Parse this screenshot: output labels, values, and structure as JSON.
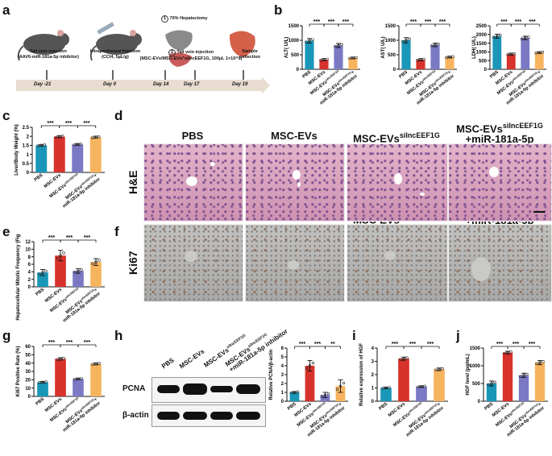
{
  "panel_labels": {
    "a": "a",
    "b": "b",
    "c": "c",
    "d": "d",
    "e": "e",
    "f": "f",
    "g": "g",
    "h": "h",
    "i": "i",
    "j": "j"
  },
  "colors": {
    "PBS": "#1a97b8",
    "MSC-EVs": "#d7322b",
    "MSC-EVs-silnc": "#7b79c4",
    "MSC-EVs-silnc+inh": "#f7b45f"
  },
  "group_labels": [
    "PBS",
    "MSC-EVs",
    "MSC-EVs^silncEEF1G",
    "MSC-EVs^silncEEF1G+miR-181a-5p inhibitor"
  ],
  "group_display": {
    "pbs": "PBS",
    "msc": "MSC-EVs",
    "silnc_base": "MSC-EVs",
    "silnc_sup": "silncEEF1G",
    "inh_base": "MSC-EVs",
    "inh_sup": "silncEEF1G",
    "inh_tail": "+",
    "inh_line2": "miR-181a-5p inhibitor",
    "inh_line2_full": "+miR-181a-5p inhibitor"
  },
  "timeline": {
    "steps": [
      {
        "label": "Tail vein injection",
        "sub": "(AAV6-miR-181a-5p inhibitor)",
        "day": "Day -21"
      },
      {
        "label": "Intraperitoneal Injection",
        "sub": "(CCl4, 5µL/g)",
        "day": "Day 0"
      },
      {
        "label": "",
        "sub": "",
        "day": "Day 14"
      },
      {
        "label": "Tail vein injection",
        "sub": "(MSC-EVs/MSC-EVs^silncEEF1G, 100µL 1×10^9)",
        "day": "Day 17"
      },
      {
        "label": "Sample",
        "sub": "collection",
        "day": "Day 19"
      }
    ],
    "hepatectomy_num": "1",
    "hepatectomy": "70% Hepatectomy",
    "tail_num": "2"
  },
  "sig": {
    "three": "***",
    "two": "**"
  },
  "image_rows": {
    "he": "H&E",
    "ki67": "Ki67"
  },
  "wb": {
    "pcna": "PCNA",
    "actin": "β-actin"
  },
  "chart_data": [
    {
      "id": "b1",
      "type": "bar",
      "ylabel": "ALT( U/L)",
      "yticks": [
        0,
        500,
        1000,
        1500
      ],
      "ylim": [
        0,
        1500
      ],
      "values": [
        980,
        330,
        820,
        390
      ],
      "errors": [
        80,
        40,
        70,
        30
      ],
      "sig": [
        "***",
        "***",
        "***"
      ]
    },
    {
      "id": "b2",
      "type": "bar",
      "ylabel": "AST( U/L)",
      "yticks": [
        0,
        500,
        1000,
        1500
      ],
      "ylim": [
        0,
        1500
      ],
      "values": [
        1000,
        330,
        840,
        420
      ],
      "errors": [
        90,
        40,
        60,
        30
      ],
      "sig": [
        "***",
        "***",
        "***"
      ]
    },
    {
      "id": "b3",
      "type": "bar",
      "ylabel": "LDH( U/L)",
      "yticks": [
        0,
        500,
        1000,
        1500,
        2000,
        2500
      ],
      "ylim": [
        0,
        2500
      ],
      "values": [
        1900,
        870,
        1800,
        960
      ],
      "errors": [
        120,
        60,
        100,
        50
      ],
      "sig": [
        "***",
        "***",
        "***"
      ]
    },
    {
      "id": "c",
      "type": "bar",
      "ylabel": "Liver/Body Weight (%)",
      "yticks": [
        0.0,
        0.5,
        1.0,
        1.5,
        2.0,
        2.5
      ],
      "ylim": [
        0,
        2.5
      ],
      "values": [
        1.5,
        1.98,
        1.55,
        1.95
      ],
      "errors": [
        0.05,
        0.06,
        0.05,
        0.06
      ],
      "sig": [
        "***",
        "***",
        "***"
      ]
    },
    {
      "id": "e",
      "type": "bar",
      "ylabel": "Hepatocellular Mitotic Frequency (Figs/ Per field)",
      "yticks": [
        0,
        2,
        4,
        6,
        8,
        10,
        12
      ],
      "ylim": [
        0,
        12
      ],
      "values": [
        3.8,
        8.3,
        4.2,
        6.6
      ],
      "errors": [
        0.8,
        1.4,
        0.6,
        0.9
      ],
      "sig": [
        "***",
        "***",
        "***"
      ]
    },
    {
      "id": "g",
      "type": "bar",
      "ylabel": "Ki67 Positive Rate (%)",
      "yticks": [
        0,
        10,
        20,
        30,
        40,
        50,
        60
      ],
      "ylim": [
        0,
        60
      ],
      "values": [
        17,
        45,
        21,
        39
      ],
      "errors": [
        1,
        1.5,
        1,
        1.2
      ],
      "sig": [
        "***",
        "***",
        "***"
      ]
    },
    {
      "id": "h",
      "type": "bar",
      "ylabel": "Relative PCNA/β-actin",
      "yticks": [
        0,
        1,
        2,
        3,
        4,
        5,
        6
      ],
      "ylim": [
        0,
        6
      ],
      "values": [
        1.0,
        4.0,
        0.7,
        1.7
      ],
      "errors": [
        0.1,
        0.6,
        0.3,
        0.7
      ],
      "sig": [
        "***",
        "***",
        "**"
      ]
    },
    {
      "id": "i",
      "type": "bar",
      "ylabel": "Relative expression of HGF",
      "yticks": [
        0,
        1,
        2,
        3,
        4
      ],
      "ylim": [
        0,
        4
      ],
      "values": [
        1.0,
        3.2,
        1.1,
        2.4
      ],
      "errors": [
        0.05,
        0.12,
        0.06,
        0.1
      ],
      "sig": [
        "***",
        "***",
        "***"
      ]
    },
    {
      "id": "j",
      "type": "bar",
      "ylabel": "HGF level (pg/mL)",
      "yticks": [
        0,
        500,
        1000,
        1500
      ],
      "ylim": [
        0,
        1500
      ],
      "values": [
        500,
        1370,
        730,
        1090
      ],
      "errors": [
        70,
        40,
        60,
        60
      ],
      "sig": [
        "***",
        "***",
        "***"
      ]
    }
  ]
}
